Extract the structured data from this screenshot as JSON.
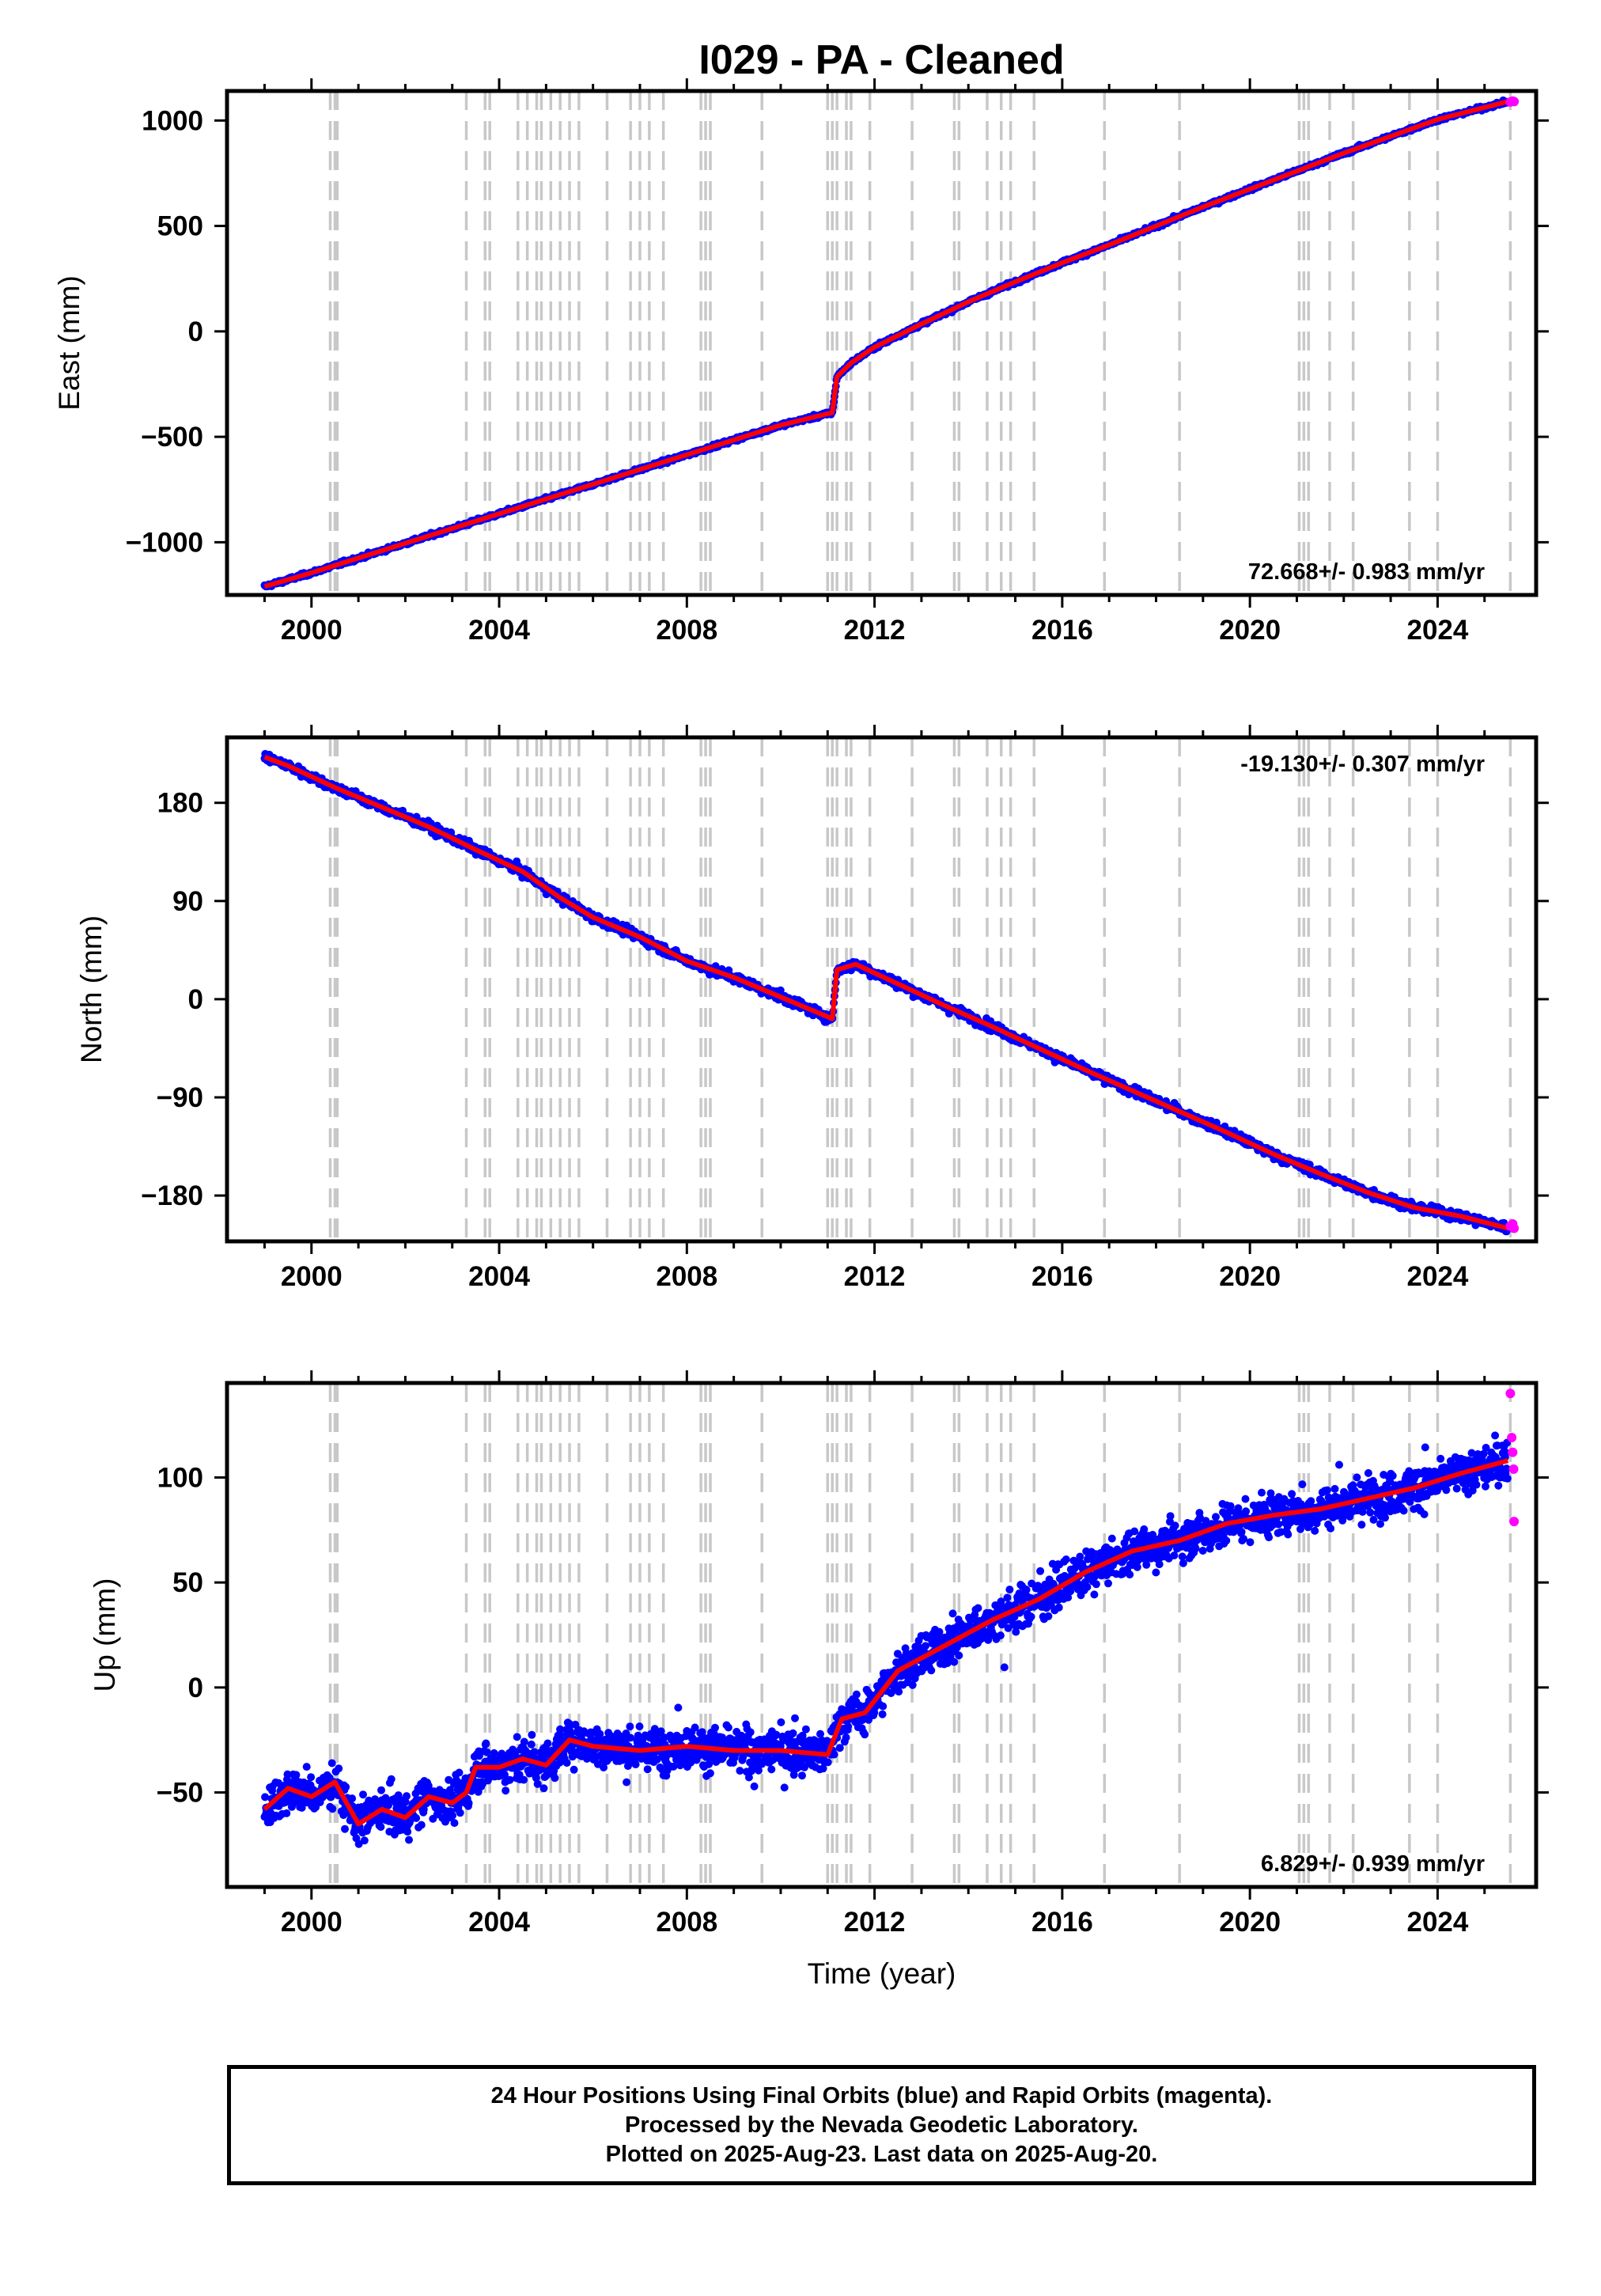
{
  "colors": {
    "final_orbits": "#0000ff",
    "rapid_orbits": "#ff00ff",
    "model_fit": "#ff0000",
    "event_lines": "#c8c8c8",
    "frame": "#000000"
  },
  "chart_data": [
    {
      "type": "scatter",
      "title": "I029  - PA - Cleaned",
      "xlabel": "",
      "ylabel": "East (mm)",
      "xlim": [
        1998.2,
        2026.1
      ],
      "ylim": [
        -1250,
        1140
      ],
      "xticks": [
        2000,
        2004,
        2008,
        2012,
        2016,
        2020,
        2024
      ],
      "yticks": [
        1000,
        500,
        0,
        -500,
        -1000
      ],
      "ytick_labels": [
        "1000",
        "500",
        "0",
        "−500",
        "−1000"
      ],
      "rate_label": "72.668+/- 0.983 mm/yr",
      "rate_position": "bottom-right",
      "series": [
        {
          "kind": "final_orbits",
          "x": [
            1999.0,
            2000.0,
            2001.0,
            2002.0,
            2003.0,
            2004.0,
            2005.0,
            2006.0,
            2007.0,
            2008.0,
            2009.0,
            2010.0,
            2011.1,
            2011.2,
            2011.5,
            2012.0,
            2013.0,
            2014.0,
            2015.0,
            2016.0,
            2017.0,
            2018.0,
            2019.0,
            2020.0,
            2021.0,
            2022.0,
            2023.0,
            2024.0,
            2025.5
          ],
          "y": [
            -1210,
            -1145,
            -1075,
            -1005,
            -935,
            -865,
            -795,
            -725,
            -655,
            -585,
            -515,
            -445,
            -385,
            -215,
            -150,
            -75,
            35,
            140,
            235,
            325,
            410,
            500,
            590,
            675,
            760,
            845,
            925,
            1005,
            1090
          ]
        }
      ],
      "rapid_orbits": {
        "x": [
          2025.55,
          2025.6,
          2025.63
        ],
        "y": [
          1088,
          1092,
          1090
        ]
      },
      "events": {
        "x": [
          2000.4,
          2000.5,
          2000.55,
          2003.3,
          2003.7,
          2003.8,
          2004.4,
          2004.6,
          2004.8,
          2004.9,
          2005.1,
          2005.3,
          2005.5,
          2005.7,
          2006.3,
          2006.8,
          2007.0,
          2007.2,
          2007.5,
          2008.3,
          2008.4,
          2008.5,
          2009.6,
          2011.0,
          2011.1,
          2011.2,
          2011.4,
          2011.5,
          2011.9,
          2012.8,
          2013.7,
          2013.8,
          2014.4,
          2014.7,
          2014.9,
          2015.4,
          2016.9,
          2018.5,
          2021.05,
          2021.15,
          2021.25,
          2021.7,
          2022.2,
          2023.4,
          2024.0,
          2025.55
        ]
      }
    },
    {
      "type": "scatter",
      "title": "",
      "xlabel": "",
      "ylabel": "North (mm)",
      "xlim": [
        1998.2,
        2026.1
      ],
      "ylim": [
        -222,
        240
      ],
      "xticks": [
        2000,
        2004,
        2008,
        2012,
        2016,
        2020,
        2024
      ],
      "yticks": [
        180,
        90,
        0,
        -90,
        -180
      ],
      "ytick_labels": [
        "180",
        "90",
        "0",
        "−90",
        "−180"
      ],
      "rate_label": "-19.130+/- 0.307 mm/yr",
      "rate_position": "top-right",
      "series": [
        {
          "kind": "final_orbits",
          "x": [
            1999.0,
            1999.5,
            2000.5,
            2001.5,
            2002.5,
            2003.5,
            2004.5,
            2005.3,
            2006.0,
            2007.0,
            2008.0,
            2009.0,
            2010.0,
            2011.1,
            2011.2,
            2011.6,
            2012.5,
            2013.5,
            2014.5,
            2015.5,
            2016.5,
            2017.5,
            2018.5,
            2019.5,
            2020.5,
            2021.5,
            2022.5,
            2023.5,
            2024.5,
            2025.5
          ],
          "y": [
            222,
            214,
            194,
            176,
            158,
            137,
            117,
            93,
            75,
            57,
            35,
            20,
            2,
            -18,
            27,
            32,
            14,
            -6,
            -25,
            -45,
            -65,
            -84,
            -103,
            -122,
            -142,
            -160,
            -177,
            -191,
            -199,
            -210
          ]
        }
      ],
      "rapid_orbits": {
        "x": [
          2025.55,
          2025.6,
          2025.63
        ],
        "y": [
          -208,
          -206,
          -210
        ]
      },
      "events": {
        "x": [
          2000.4,
          2000.5,
          2000.55,
          2003.3,
          2003.7,
          2003.8,
          2004.4,
          2004.6,
          2004.8,
          2004.9,
          2005.1,
          2005.3,
          2005.5,
          2005.7,
          2006.3,
          2006.8,
          2007.0,
          2007.2,
          2007.5,
          2008.3,
          2008.4,
          2008.5,
          2009.6,
          2011.0,
          2011.1,
          2011.2,
          2011.4,
          2011.5,
          2011.9,
          2012.8,
          2013.7,
          2013.8,
          2014.4,
          2014.7,
          2014.9,
          2015.4,
          2016.9,
          2018.5,
          2021.05,
          2021.15,
          2021.25,
          2021.7,
          2022.2,
          2023.4,
          2024.0,
          2025.55
        ]
      }
    },
    {
      "type": "scatter",
      "title": "",
      "xlabel": "Time (year)",
      "ylabel": "Up (mm)",
      "xlim": [
        1998.2,
        2026.1
      ],
      "ylim": [
        -95,
        145
      ],
      "xticks": [
        2000,
        2004,
        2008,
        2012,
        2016,
        2020,
        2024
      ],
      "yticks": [
        100,
        50,
        0,
        -50
      ],
      "ytick_labels": [
        "100",
        "50",
        "0",
        "−50"
      ],
      "rate_label": "6.829+/- 0.939 mm/yr",
      "rate_position": "bottom-right",
      "series": [
        {
          "kind": "final_orbits",
          "x": [
            1999.0,
            1999.5,
            2000.0,
            2000.5,
            2001.0,
            2001.5,
            2002.0,
            2002.5,
            2003.0,
            2003.3,
            2003.5,
            2004.0,
            2004.5,
            2005.0,
            2005.5,
            2006.0,
            2007.0,
            2008.0,
            2009.0,
            2010.0,
            2011.0,
            2011.3,
            2011.8,
            2012.5,
            2013.5,
            2014.5,
            2015.5,
            2016.5,
            2017.5,
            2018.5,
            2019.5,
            2020.5,
            2021.5,
            2022.5,
            2023.5,
            2024.5,
            2025.5
          ],
          "y": [
            -58,
            -48,
            -52,
            -45,
            -65,
            -58,
            -62,
            -52,
            -55,
            -50,
            -38,
            -38,
            -34,
            -37,
            -25,
            -28,
            -30,
            -28,
            -30,
            -30,
            -32,
            -15,
            -12,
            8,
            20,
            32,
            42,
            55,
            65,
            70,
            78,
            82,
            85,
            90,
            95,
            102,
            108
          ]
        }
      ],
      "rapid_orbits": {
        "x": [
          2025.55,
          2025.58,
          2025.6,
          2025.62,
          2025.63
        ],
        "y": [
          140,
          119,
          112,
          104,
          79
        ]
      },
      "events": {
        "x": [
          2000.4,
          2000.5,
          2000.55,
          2003.3,
          2003.7,
          2003.8,
          2004.4,
          2004.6,
          2004.8,
          2004.9,
          2005.1,
          2005.3,
          2005.5,
          2005.7,
          2006.3,
          2006.8,
          2007.0,
          2007.2,
          2007.5,
          2008.3,
          2008.4,
          2008.5,
          2009.6,
          2011.0,
          2011.1,
          2011.2,
          2011.4,
          2011.5,
          2011.9,
          2012.8,
          2013.7,
          2013.8,
          2014.4,
          2014.7,
          2014.9,
          2015.4,
          2016.9,
          2018.5,
          2021.05,
          2021.15,
          2021.25,
          2021.7,
          2022.2,
          2023.4,
          2024.0,
          2025.55
        ]
      }
    }
  ],
  "footer": {
    "line1": "24 Hour Positions Using Final Orbits (blue) and Rapid Orbits (magenta).",
    "line2": "Processed by the Nevada Geodetic Laboratory.",
    "line3": "Plotted on 2025-Aug-23. Last data on 2025-Aug-20."
  }
}
